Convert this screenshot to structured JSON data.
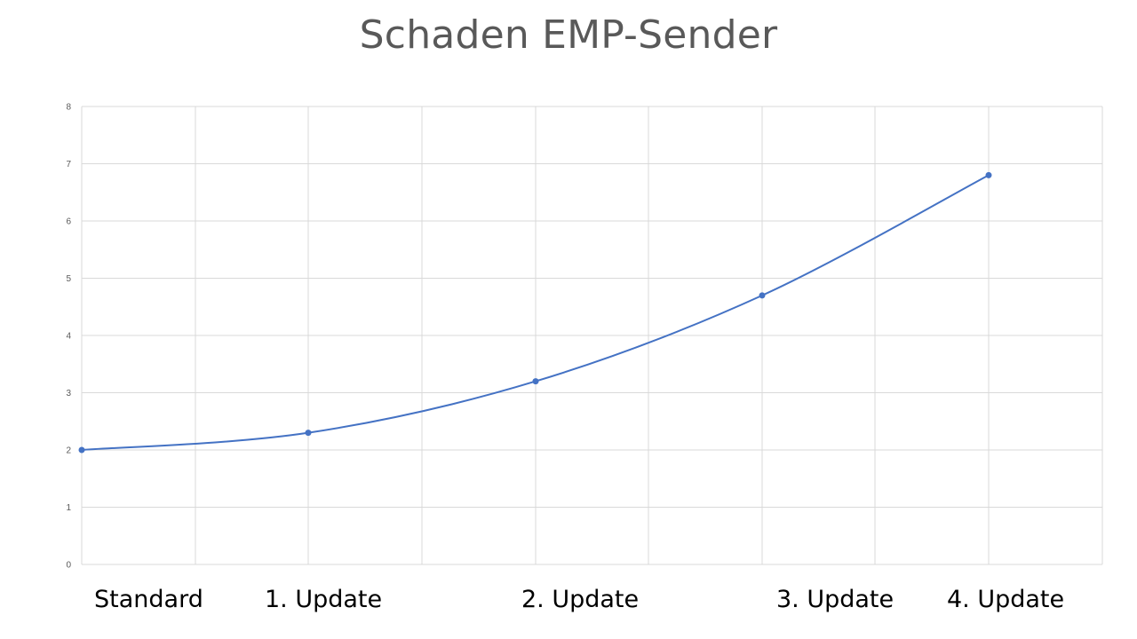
{
  "chart_data": {
    "type": "line",
    "title": "Schaden EMP-Sender",
    "categories": [
      "Standard",
      "1. Update",
      "2. Update",
      "3. Update",
      "4. Update"
    ],
    "series": [
      {
        "values": [
          2,
          2.3,
          3.2,
          4.7,
          6.8
        ]
      }
    ],
    "ylim": [
      0,
      8
    ],
    "yticks": [
      "0",
      "1",
      "2",
      "3",
      "4",
      "5",
      "6",
      "7",
      "8"
    ],
    "grid": true,
    "smooth": true,
    "line_color": "#4472C4",
    "grid_color": "#D9D9D9"
  }
}
